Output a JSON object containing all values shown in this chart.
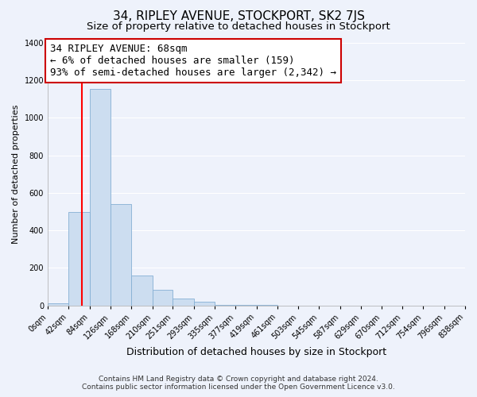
{
  "title": "34, RIPLEY AVENUE, STOCKPORT, SK2 7JS",
  "subtitle": "Size of property relative to detached houses in Stockport",
  "xlabel": "Distribution of detached houses by size in Stockport",
  "ylabel": "Number of detached properties",
  "bar_color": "#ccddf0",
  "bar_edge_color": "#85afd4",
  "background_color": "#eef2fb",
  "plot_bg_color": "#eef2fb",
  "grid_color": "#ffffff",
  "red_line_x": 68,
  "annotation_text": "34 RIPLEY AVENUE: 68sqm\n← 6% of detached houses are smaller (159)\n93% of semi-detached houses are larger (2,342) →",
  "annotation_box_facecolor": "#ffffff",
  "annotation_box_edgecolor": "#cc0000",
  "bin_edges": [
    0,
    42,
    84,
    126,
    168,
    210,
    251,
    293,
    335,
    377,
    419,
    461,
    503,
    545,
    587,
    629,
    670,
    712,
    754,
    796,
    838
  ],
  "bar_heights": [
    10,
    500,
    1155,
    540,
    160,
    85,
    35,
    20,
    5,
    2,
    1,
    0,
    0,
    0,
    0,
    0,
    0,
    0,
    0,
    0
  ],
  "ylim": [
    0,
    1400
  ],
  "yticks": [
    0,
    200,
    400,
    600,
    800,
    1000,
    1200,
    1400
  ],
  "xlim_min": 0,
  "xlim_max": 838,
  "footer_text": "Contains HM Land Registry data © Crown copyright and database right 2024.\nContains public sector information licensed under the Open Government Licence v3.0.",
  "title_fontsize": 11,
  "subtitle_fontsize": 9.5,
  "xlabel_fontsize": 9,
  "ylabel_fontsize": 8,
  "tick_fontsize": 7,
  "annotation_fontsize": 9,
  "footer_fontsize": 6.5
}
